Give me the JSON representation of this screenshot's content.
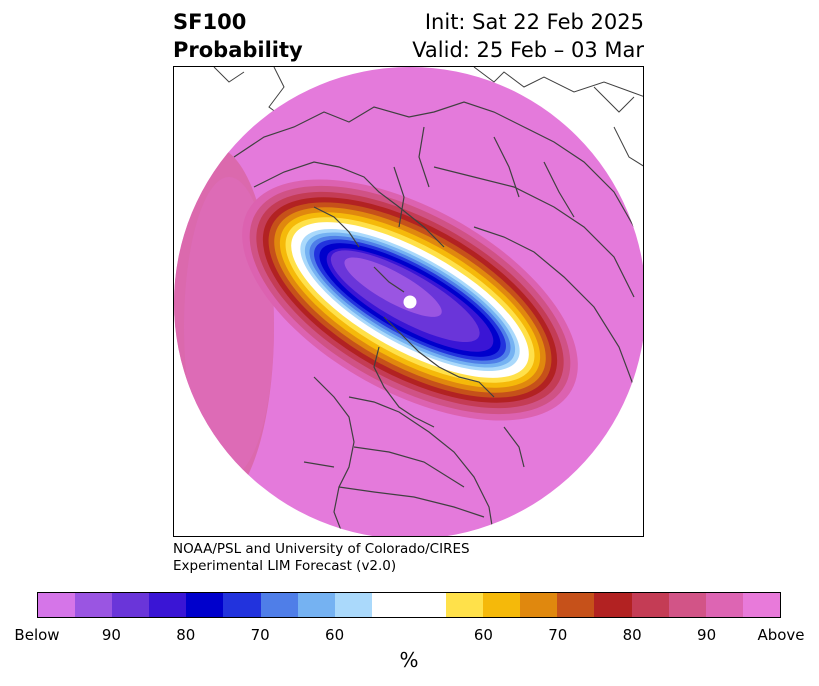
{
  "title": {
    "left_line1": "SF100",
    "left_line2": "Probability",
    "right_line1": "Init: Sat 22 Feb 2025",
    "right_line2": "Valid: 25 Feb – 03 Mar"
  },
  "credit": {
    "line1": "NOAA/PSL and University of Colorado/CIRES",
    "line2": "Experimental LIM Forecast (v2.0)"
  },
  "colorbar": {
    "unit": "%",
    "segments": [
      {
        "color": "#d575e8"
      },
      {
        "color": "#9a55e2"
      },
      {
        "color": "#6a35d9"
      },
      {
        "color": "#3a15d5"
      },
      {
        "color": "#0000cc"
      },
      {
        "color": "#2233dd"
      },
      {
        "color": "#4f7ee8"
      },
      {
        "color": "#75b2f2"
      },
      {
        "color": "#aad9fb"
      },
      {
        "color": "#ffffff"
      },
      {
        "color": "#ffffff"
      },
      {
        "color": "#ffe14a"
      },
      {
        "color": "#f5b90a"
      },
      {
        "color": "#e0880e"
      },
      {
        "color": "#c6511a"
      },
      {
        "color": "#b22222"
      },
      {
        "color": "#c43c55"
      },
      {
        "color": "#d25487"
      },
      {
        "color": "#dd65b3"
      },
      {
        "color": "#e87ada"
      }
    ],
    "tick_labels": [
      "Below",
      "90",
      "80",
      "70",
      "60",
      "60",
      "70",
      "80",
      "90",
      "Above"
    ]
  },
  "map": {
    "background_color": "#e47adb",
    "pole_marker_color": "#ffffff",
    "boundary_color": "#404040"
  }
}
